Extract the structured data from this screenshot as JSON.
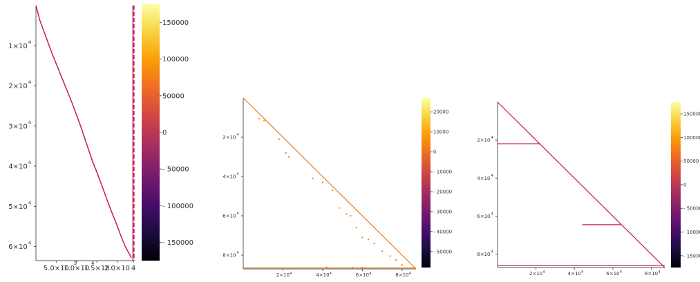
{
  "colors": {
    "series1": "#c2185b",
    "series2": "#f07d1a",
    "series3": "#c2185b",
    "axis": "#555555"
  },
  "colormap": [
    "#000004",
    "#1b0c41",
    "#4a0c6b",
    "#781c6d",
    "#a52c60",
    "#cf4446",
    "#ed6925",
    "#fb9b06",
    "#f7d13d",
    "#fcffa4"
  ],
  "chart_data": [
    {
      "type": "heatmap",
      "title": "",
      "xlabel": "",
      "ylabel": "",
      "xlim": [
        0,
        24000
      ],
      "ylim": [
        0,
        63500
      ],
      "y_reversed": true,
      "x_ticks": [
        {
          "value": 5000,
          "label": "5.0×10"
        },
        {
          "value": 10000,
          "label": "1.0×10"
        },
        {
          "value": 15000,
          "label": "1.5×10"
        },
        {
          "value": 20000,
          "label": "2.0×10"
        },
        {
          "value": 24000,
          "label": "4"
        }
      ],
      "x_tick_exponents": [
        {
          "value": 9700,
          "label": "3"
        },
        {
          "value": 14000,
          "label": "4"
        }
      ],
      "y_ticks": [
        {
          "value": 10000,
          "label": "1×10",
          "exp": "4"
        },
        {
          "value": 20000,
          "label": "2×10",
          "exp": "4"
        },
        {
          "value": 30000,
          "label": "3×10",
          "exp": "4"
        },
        {
          "value": 40000,
          "label": "4×10",
          "exp": "4"
        },
        {
          "value": 50000,
          "label": "5×10",
          "exp": "4"
        },
        {
          "value": 60000,
          "label": "6×10",
          "exp": "4"
        }
      ],
      "series": [
        {
          "points": [
            [
              0,
              0
            ],
            [
              400,
              1500
            ],
            [
              900,
              3500
            ],
            [
              1800,
              6000
            ],
            [
              2900,
              9000
            ],
            [
              4000,
              12000
            ],
            [
              5200,
              15000
            ],
            [
              6400,
              18000
            ],
            [
              7600,
              21000
            ],
            [
              8800,
              24000
            ],
            [
              9900,
              27000
            ],
            [
              11000,
              30000
            ],
            [
              12000,
              33000
            ],
            [
              13000,
              36000
            ],
            [
              14000,
              39000
            ],
            [
              15200,
              42000
            ],
            [
              16300,
              45000
            ],
            [
              17400,
              48000
            ],
            [
              18500,
              51000
            ],
            [
              19700,
              54000
            ],
            [
              20800,
              57000
            ],
            [
              22000,
              60000
            ],
            [
              23500,
              62800
            ]
          ]
        },
        {
          "points": [
            [
              23900,
              0
            ],
            [
              23900,
              63500
            ]
          ]
        }
      ],
      "colorbar": {
        "min": -175000,
        "max": 175000,
        "ticks": [
          150000,
          100000,
          50000,
          0,
          -50000,
          -100000,
          -150000
        ],
        "labels": [
          "150000",
          "100000",
          "50000",
          "0",
          "- 50000",
          "- 100000",
          "- 150000"
        ]
      }
    },
    {
      "type": "heatmap",
      "title": "",
      "xlabel": "",
      "ylabel": "",
      "xlim": [
        0,
        87000
      ],
      "ylim": [
        0,
        87000
      ],
      "y_reversed": true,
      "x_ticks": [
        {
          "value": 20000,
          "label": "2×10",
          "exp": "4"
        },
        {
          "value": 40000,
          "label": "4×10",
          "exp": "4"
        },
        {
          "value": 60000,
          "label": "6×10",
          "exp": "4"
        },
        {
          "value": 80000,
          "label": "8×10",
          "exp": "4"
        }
      ],
      "y_ticks": [
        {
          "value": 20000,
          "label": "2×10",
          "exp": "4"
        },
        {
          "value": 40000,
          "label": "4×10",
          "exp": "4"
        },
        {
          "value": 60000,
          "label": "6×10",
          "exp": "4"
        },
        {
          "value": 80000,
          "label": "8×10",
          "exp": "4"
        }
      ],
      "series": [
        {
          "points": [
            [
              0,
              0
            ],
            [
              87000,
              87000
            ]
          ]
        },
        {
          "points": [
            [
              0,
              86500
            ],
            [
              87000,
              86500
            ]
          ]
        }
      ],
      "scatter": [
        [
          8000,
          10500
        ],
        [
          10500,
          11500
        ],
        [
          18000,
          21000
        ],
        [
          21500,
          28000
        ],
        [
          23000,
          30000
        ],
        [
          35000,
          41000
        ],
        [
          40000,
          43000
        ],
        [
          45000,
          47000
        ],
        [
          48500,
          56000
        ],
        [
          52000,
          59000
        ],
        [
          54000,
          60000
        ],
        [
          57000,
          66000
        ],
        [
          60000,
          71000
        ],
        [
          63000,
          72000
        ],
        [
          66000,
          74000
        ],
        [
          70000,
          78000
        ],
        [
          74000,
          80500
        ],
        [
          77000,
          82500
        ],
        [
          80000,
          85000
        ],
        [
          42000,
          86200
        ],
        [
          55000,
          86300
        ],
        [
          60000,
          86300
        ]
      ],
      "colorbar": {
        "min": -58000,
        "max": 27000,
        "ticks": [
          20000,
          10000,
          0,
          -10000,
          -20000,
          -30000,
          -40000,
          -50000
        ],
        "labels": [
          "20000",
          "10000",
          "0",
          "- 10000",
          "- 20000",
          "- 30000",
          "- 40000",
          "- 50000"
        ]
      }
    },
    {
      "type": "heatmap",
      "title": "",
      "xlabel": "",
      "ylabel": "",
      "xlim": [
        0,
        87000
      ],
      "ylim": [
        0,
        87000
      ],
      "y_reversed": true,
      "x_ticks": [
        {
          "value": 20000,
          "label": "2×10",
          "exp": "4"
        },
        {
          "value": 40000,
          "label": "4×10",
          "exp": "4"
        },
        {
          "value": 60000,
          "label": "6×10",
          "exp": "4"
        },
        {
          "value": 80000,
          "label": "8×10",
          "exp": "4"
        }
      ],
      "y_ticks": [
        {
          "value": 20000,
          "label": "2×10",
          "exp": "4"
        },
        {
          "value": 40000,
          "label": "4×10",
          "exp": "4"
        },
        {
          "value": 60000,
          "label": "6×10",
          "exp": "4"
        },
        {
          "value": 80000,
          "label": "8×10",
          "exp": "4"
        }
      ],
      "series": [
        {
          "points": [
            [
              0,
              0
            ],
            [
              87000,
              87000
            ]
          ]
        },
        {
          "points": [
            [
              0,
              86000
            ],
            [
              87000,
              86000
            ]
          ]
        },
        {
          "points": [
            [
              0,
              22000
            ],
            [
              22000,
              22000
            ]
          ]
        },
        {
          "points": [
            [
              44000,
              64500
            ],
            [
              64500,
              64500
            ]
          ]
        }
      ],
      "colorbar": {
        "min": -175000,
        "max": 175000,
        "ticks": [
          150000,
          100000,
          50000,
          0,
          -50000,
          -100000,
          -150000
        ],
        "labels": [
          "150000",
          "100000",
          "50000",
          "0",
          "- 50000",
          "- 100000",
          "- 150000"
        ]
      }
    }
  ]
}
